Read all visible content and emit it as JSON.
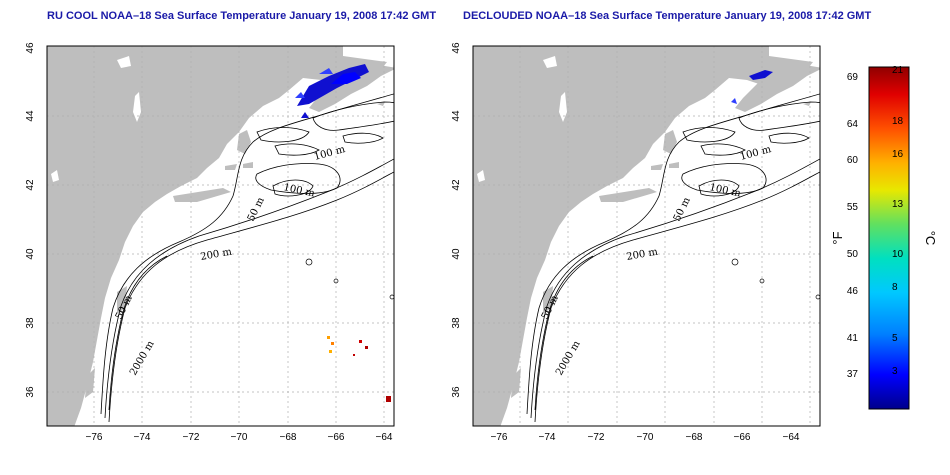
{
  "panels": [
    {
      "title": "RU COOL NOAA–18 Sea Surface Temperature January 19, 2008 17:42 GMT",
      "contour_labels": [
        "100 m",
        "100 m",
        "50 m",
        "200 m",
        "50 m",
        "2000 m"
      ]
    },
    {
      "title": "DECLOUDED NOAA–18 Sea Surface Temperature January 19, 2008 17:42 GMT",
      "contour_labels": [
        "100 m",
        "100 m",
        "50 m",
        "200 m",
        "50 m",
        "2000 m"
      ]
    }
  ],
  "axes": {
    "x_ticks": [
      "−76",
      "−74",
      "−72",
      "−70",
      "−68",
      "−66",
      "−64"
    ],
    "y_ticks": [
      "36",
      "38",
      "40",
      "42",
      "44",
      "46"
    ],
    "lon_range": [
      -77,
      -63
    ],
    "lat_range": [
      35,
      46
    ]
  },
  "colorbar": {
    "fahrenheit_label": "°F",
    "celsius_label": "°C",
    "fahrenheit_ticks": [
      "37",
      "41",
      "46",
      "50",
      "55",
      "60",
      "64",
      "69"
    ],
    "celsius_ticks": [
      "3",
      "5",
      "8",
      "10",
      "13",
      "16",
      "18",
      "21"
    ],
    "colors": [
      "#00008b",
      "#0000ff",
      "#0080ff",
      "#00c8ff",
      "#00e0c0",
      "#60e060",
      "#e8e800",
      "#ffb000",
      "#ff5000",
      "#e00000",
      "#900000"
    ]
  },
  "map_colors": {
    "land": "#bebebe",
    "ocean": "#ffffff",
    "contour": "#000000",
    "grid": "#b0b0b0"
  }
}
